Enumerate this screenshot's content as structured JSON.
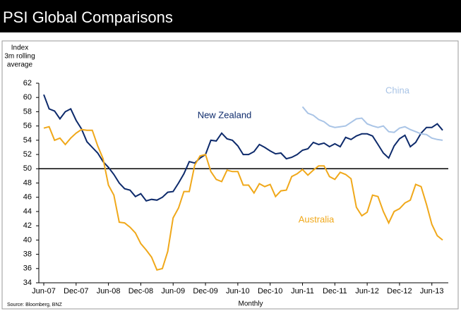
{
  "chart_data": {
    "type": "line",
    "title": "PSI Global Comparisons",
    "y_label": [
      "Index",
      "3m rolling",
      "average"
    ],
    "x_label": "Monthly",
    "source": "Source: Bloomberg, BNZ",
    "categories": [
      "Jun-07",
      null,
      null,
      null,
      null,
      null,
      "Dec-07",
      null,
      null,
      null,
      null,
      null,
      "Jun-08",
      null,
      null,
      null,
      null,
      null,
      "Dec-08",
      null,
      null,
      null,
      null,
      null,
      "Jun-09",
      null,
      null,
      null,
      null,
      null,
      "Dec-09",
      null,
      null,
      null,
      null,
      null,
      "Jun-10",
      null,
      null,
      null,
      null,
      null,
      "Dec-10",
      null,
      null,
      null,
      null,
      null,
      "Jun-11",
      null,
      null,
      null,
      null,
      null,
      "Dec-11",
      null,
      null,
      null,
      null,
      null,
      "Jun-12",
      null,
      null,
      null,
      null,
      null,
      "Dec-12",
      null,
      null,
      null,
      null,
      null,
      "Jun-13",
      null,
      null
    ],
    "ylim": [
      34,
      62
    ],
    "yticks": [
      34,
      36,
      38,
      40,
      42,
      44,
      46,
      48,
      50,
      52,
      54,
      56,
      58,
      60,
      62
    ],
    "hline": 50,
    "series": [
      {
        "name": "New Zealand",
        "color": "#0d2a6b",
        "values": [
          60.4,
          58.4,
          58.1,
          57.0,
          58.0,
          58.4,
          56.8,
          55.6,
          53.8,
          53.0,
          52.2,
          51.0,
          50.2,
          49.2,
          48.0,
          47.2,
          47.0,
          46.1,
          46.5,
          45.5,
          45.7,
          45.6,
          46.0,
          46.7,
          46.8,
          48.0,
          49.3,
          51.0,
          50.8,
          51.5,
          52.0,
          54.0,
          53.9,
          55.0,
          54.2,
          54.0,
          53.2,
          52.0,
          52.0,
          52.4,
          53.4,
          53.0,
          52.5,
          52.1,
          52.2,
          51.4,
          51.6,
          52.0,
          52.6,
          52.8,
          53.7,
          53.4,
          53.6,
          53.1,
          53.5,
          53.1,
          54.4,
          54.1,
          54.6,
          54.9,
          54.9,
          54.6,
          53.4,
          52.2,
          51.5,
          53.2,
          54.2,
          54.7,
          53.1,
          53.7,
          55.0,
          55.8,
          55.8,
          56.3,
          55.4
        ]
      },
      {
        "name": "Australia",
        "color": "#f0a81a",
        "values": [
          55.7,
          55.9,
          54.0,
          54.3,
          53.4,
          54.3,
          55.0,
          55.5,
          55.4,
          55.4,
          53.2,
          51.4,
          47.7,
          46.3,
          42.5,
          42.4,
          41.8,
          41.0,
          39.5,
          38.6,
          37.6,
          35.8,
          36.0,
          38.4,
          43.1,
          44.5,
          46.8,
          46.8,
          50.5,
          51.8,
          52.0,
          49.6,
          48.5,
          48.2,
          49.8,
          49.6,
          49.6,
          47.7,
          47.7,
          46.6,
          47.9,
          47.5,
          47.8,
          46.1,
          46.9,
          47.0,
          48.9,
          49.3,
          49.9,
          49.1,
          49.8,
          50.4,
          50.4,
          48.9,
          48.5,
          49.5,
          49.2,
          48.6,
          44.6,
          43.4,
          43.9,
          46.3,
          46.1,
          44.0,
          42.4,
          44.0,
          44.4,
          45.2,
          45.6,
          47.8,
          47.5,
          45.0,
          42.2,
          40.6,
          40.0
        ]
      },
      {
        "name": "China",
        "color": "#a9c4e6",
        "values": [
          null,
          null,
          null,
          null,
          null,
          null,
          null,
          null,
          null,
          null,
          null,
          null,
          null,
          null,
          null,
          null,
          null,
          null,
          null,
          null,
          null,
          null,
          null,
          null,
          null,
          null,
          null,
          null,
          null,
          null,
          null,
          null,
          null,
          null,
          null,
          null,
          null,
          null,
          null,
          null,
          null,
          null,
          null,
          null,
          null,
          null,
          null,
          null,
          58.7,
          57.8,
          57.5,
          56.9,
          56.6,
          56.0,
          55.8,
          55.9,
          56.0,
          56.5,
          57.0,
          57.1,
          56.3,
          56.0,
          55.8,
          56.0,
          55.2,
          55.1,
          55.7,
          55.9,
          55.5,
          55.2,
          54.9,
          54.8,
          54.3,
          54.1,
          54.0
        ]
      }
    ]
  }
}
